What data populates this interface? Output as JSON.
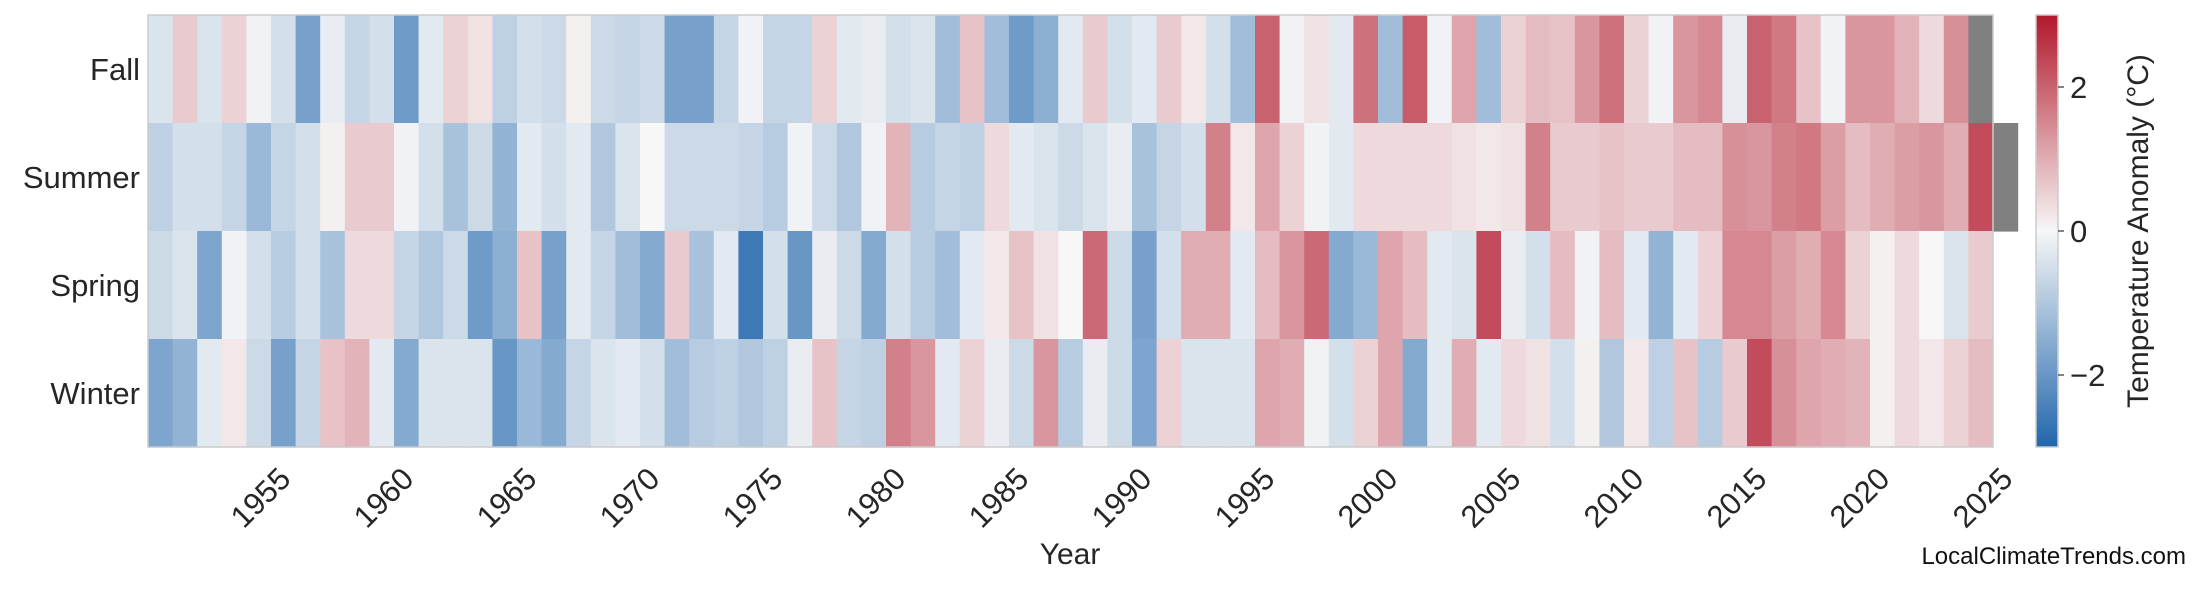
{
  "chart_data": {
    "type": "heatmap",
    "xlabel": "Year",
    "colorbar_label": "Temperature Anomaly (°C)",
    "colorbar_range": [
      -3,
      3
    ],
    "colorbar_ticks": [
      -2,
      0,
      2
    ],
    "colorbar_tick_labels": [
      "−2",
      "0",
      "2"
    ],
    "x_tick_labels": [
      "1955",
      "1960",
      "1965",
      "1970",
      "1975",
      "1980",
      "1985",
      "1990",
      "1995",
      "2000",
      "2005",
      "2010",
      "2015",
      "2020",
      "2025"
    ],
    "x_start": 1951,
    "x_end": 2025,
    "colormap": [
      "#2166ac",
      "#f7f7f7",
      "#b2182b"
    ],
    "missing_color": "#808080",
    "rows": [
      {
        "label": "Fall",
        "values": [
          -0.4,
          0.6,
          -0.4,
          0.5,
          -0.1,
          -0.5,
          -1.8,
          -0.2,
          -0.7,
          -0.5,
          -1.9,
          -0.3,
          0.5,
          0.3,
          -0.8,
          -0.5,
          -0.6,
          0.1,
          -0.6,
          -0.7,
          -0.6,
          -1.8,
          -1.8,
          -0.7,
          -0.1,
          -0.7,
          -0.7,
          0.5,
          -0.3,
          -0.2,
          -0.5,
          -0.4,
          -1.2,
          0.7,
          -1.2,
          -1.9,
          -1.5,
          -0.3,
          0.6,
          -0.5,
          -0.3,
          0.6,
          0.2,
          -0.5,
          -1.2,
          2.0,
          -0.1,
          0.3,
          -0.3,
          1.8,
          -1.2,
          2.1,
          -0.1,
          1.1,
          -1.2,
          0.5,
          0.8,
          0.7,
          1.3,
          1.8,
          0.5,
          -0.1,
          1.3,
          1.5,
          -0.2,
          2.0,
          1.7,
          0.7,
          -0.1,
          1.3,
          1.3,
          0.9,
          0.4,
          1.4,
          null
        ]
      },
      {
        "label": "Summer",
        "values": [
          -0.8,
          -0.5,
          -0.5,
          -0.7,
          -1.3,
          -0.7,
          -0.5,
          0.1,
          0.6,
          0.6,
          -0.1,
          -0.5,
          -1.1,
          -0.6,
          -1.4,
          -0.3,
          -0.5,
          -0.3,
          -1.0,
          -0.4,
          0.0,
          -0.6,
          -0.6,
          -0.6,
          -0.7,
          -0.9,
          -0.1,
          -0.6,
          -1.0,
          -0.1,
          0.9,
          -0.9,
          -0.7,
          -0.8,
          0.4,
          -0.3,
          -0.4,
          -0.6,
          -0.4,
          -0.2,
          -1.1,
          -0.7,
          -0.5,
          1.6,
          0.2,
          1.1,
          0.5,
          -0.1,
          -0.3,
          0.4,
          0.4,
          0.4,
          0.4,
          0.3,
          0.2,
          0.3,
          1.6,
          0.6,
          0.6,
          0.7,
          0.6,
          0.6,
          0.8,
          0.8,
          1.4,
          1.3,
          1.6,
          1.7,
          1.2,
          0.8,
          1.0,
          1.2,
          1.3,
          1.0,
          2.3,
          null
        ]
      },
      {
        "label": "Spring",
        "values": [
          -0.6,
          -0.4,
          -1.7,
          -0.1,
          -0.5,
          -0.9,
          -0.5,
          -1.1,
          0.4,
          0.4,
          -0.7,
          -1.0,
          -0.6,
          -1.9,
          -1.5,
          0.7,
          -1.8,
          -0.3,
          -0.7,
          -1.2,
          -1.6,
          0.6,
          -1.1,
          -0.3,
          -2.6,
          -0.5,
          -2.0,
          -0.2,
          -0.6,
          -1.6,
          -0.5,
          -0.9,
          -1.2,
          -0.3,
          0.2,
          0.7,
          0.3,
          0.0,
          1.9,
          -0.6,
          -1.8,
          -0.5,
          1.0,
          1.0,
          -0.3,
          0.8,
          1.3,
          1.9,
          -1.6,
          -1.3,
          1.1,
          0.8,
          -0.3,
          -0.4,
          2.3,
          -0.2,
          -0.5,
          0.8,
          -0.1,
          0.8,
          -0.3,
          -1.4,
          -0.3,
          0.5,
          1.5,
          1.5,
          1.2,
          1.0,
          1.5,
          0.5,
          0.1,
          0.4,
          0.0,
          -0.4,
          0.6
        ]
      },
      {
        "label": "Winter",
        "values": [
          -1.7,
          -1.4,
          -0.3,
          0.2,
          -0.6,
          -1.8,
          -0.7,
          0.7,
          0.9,
          -0.3,
          -1.6,
          -0.4,
          -0.4,
          -0.4,
          -2.0,
          -1.3,
          -1.6,
          -0.7,
          -0.4,
          -0.3,
          -0.5,
          -1.2,
          -0.9,
          -0.8,
          -1.0,
          -0.8,
          -0.2,
          0.7,
          -0.7,
          -0.8,
          1.6,
          1.3,
          -0.3,
          0.5,
          -0.2,
          -0.6,
          1.3,
          -0.9,
          -0.2,
          -0.6,
          -1.7,
          0.5,
          -0.4,
          -0.4,
          -0.4,
          1.1,
          1.0,
          -0.1,
          -0.5,
          0.5,
          1.1,
          -1.6,
          -0.3,
          1.0,
          -0.3,
          0.4,
          0.3,
          -0.5,
          0.1,
          -1.0,
          0.2,
          -0.8,
          0.7,
          -0.9,
          0.6,
          2.3,
          1.4,
          1.1,
          1.0,
          0.9,
          0.1,
          0.4,
          0.2,
          0.5,
          0.8
        ]
      }
    ]
  },
  "watermark": "LocalClimateTrends.com"
}
